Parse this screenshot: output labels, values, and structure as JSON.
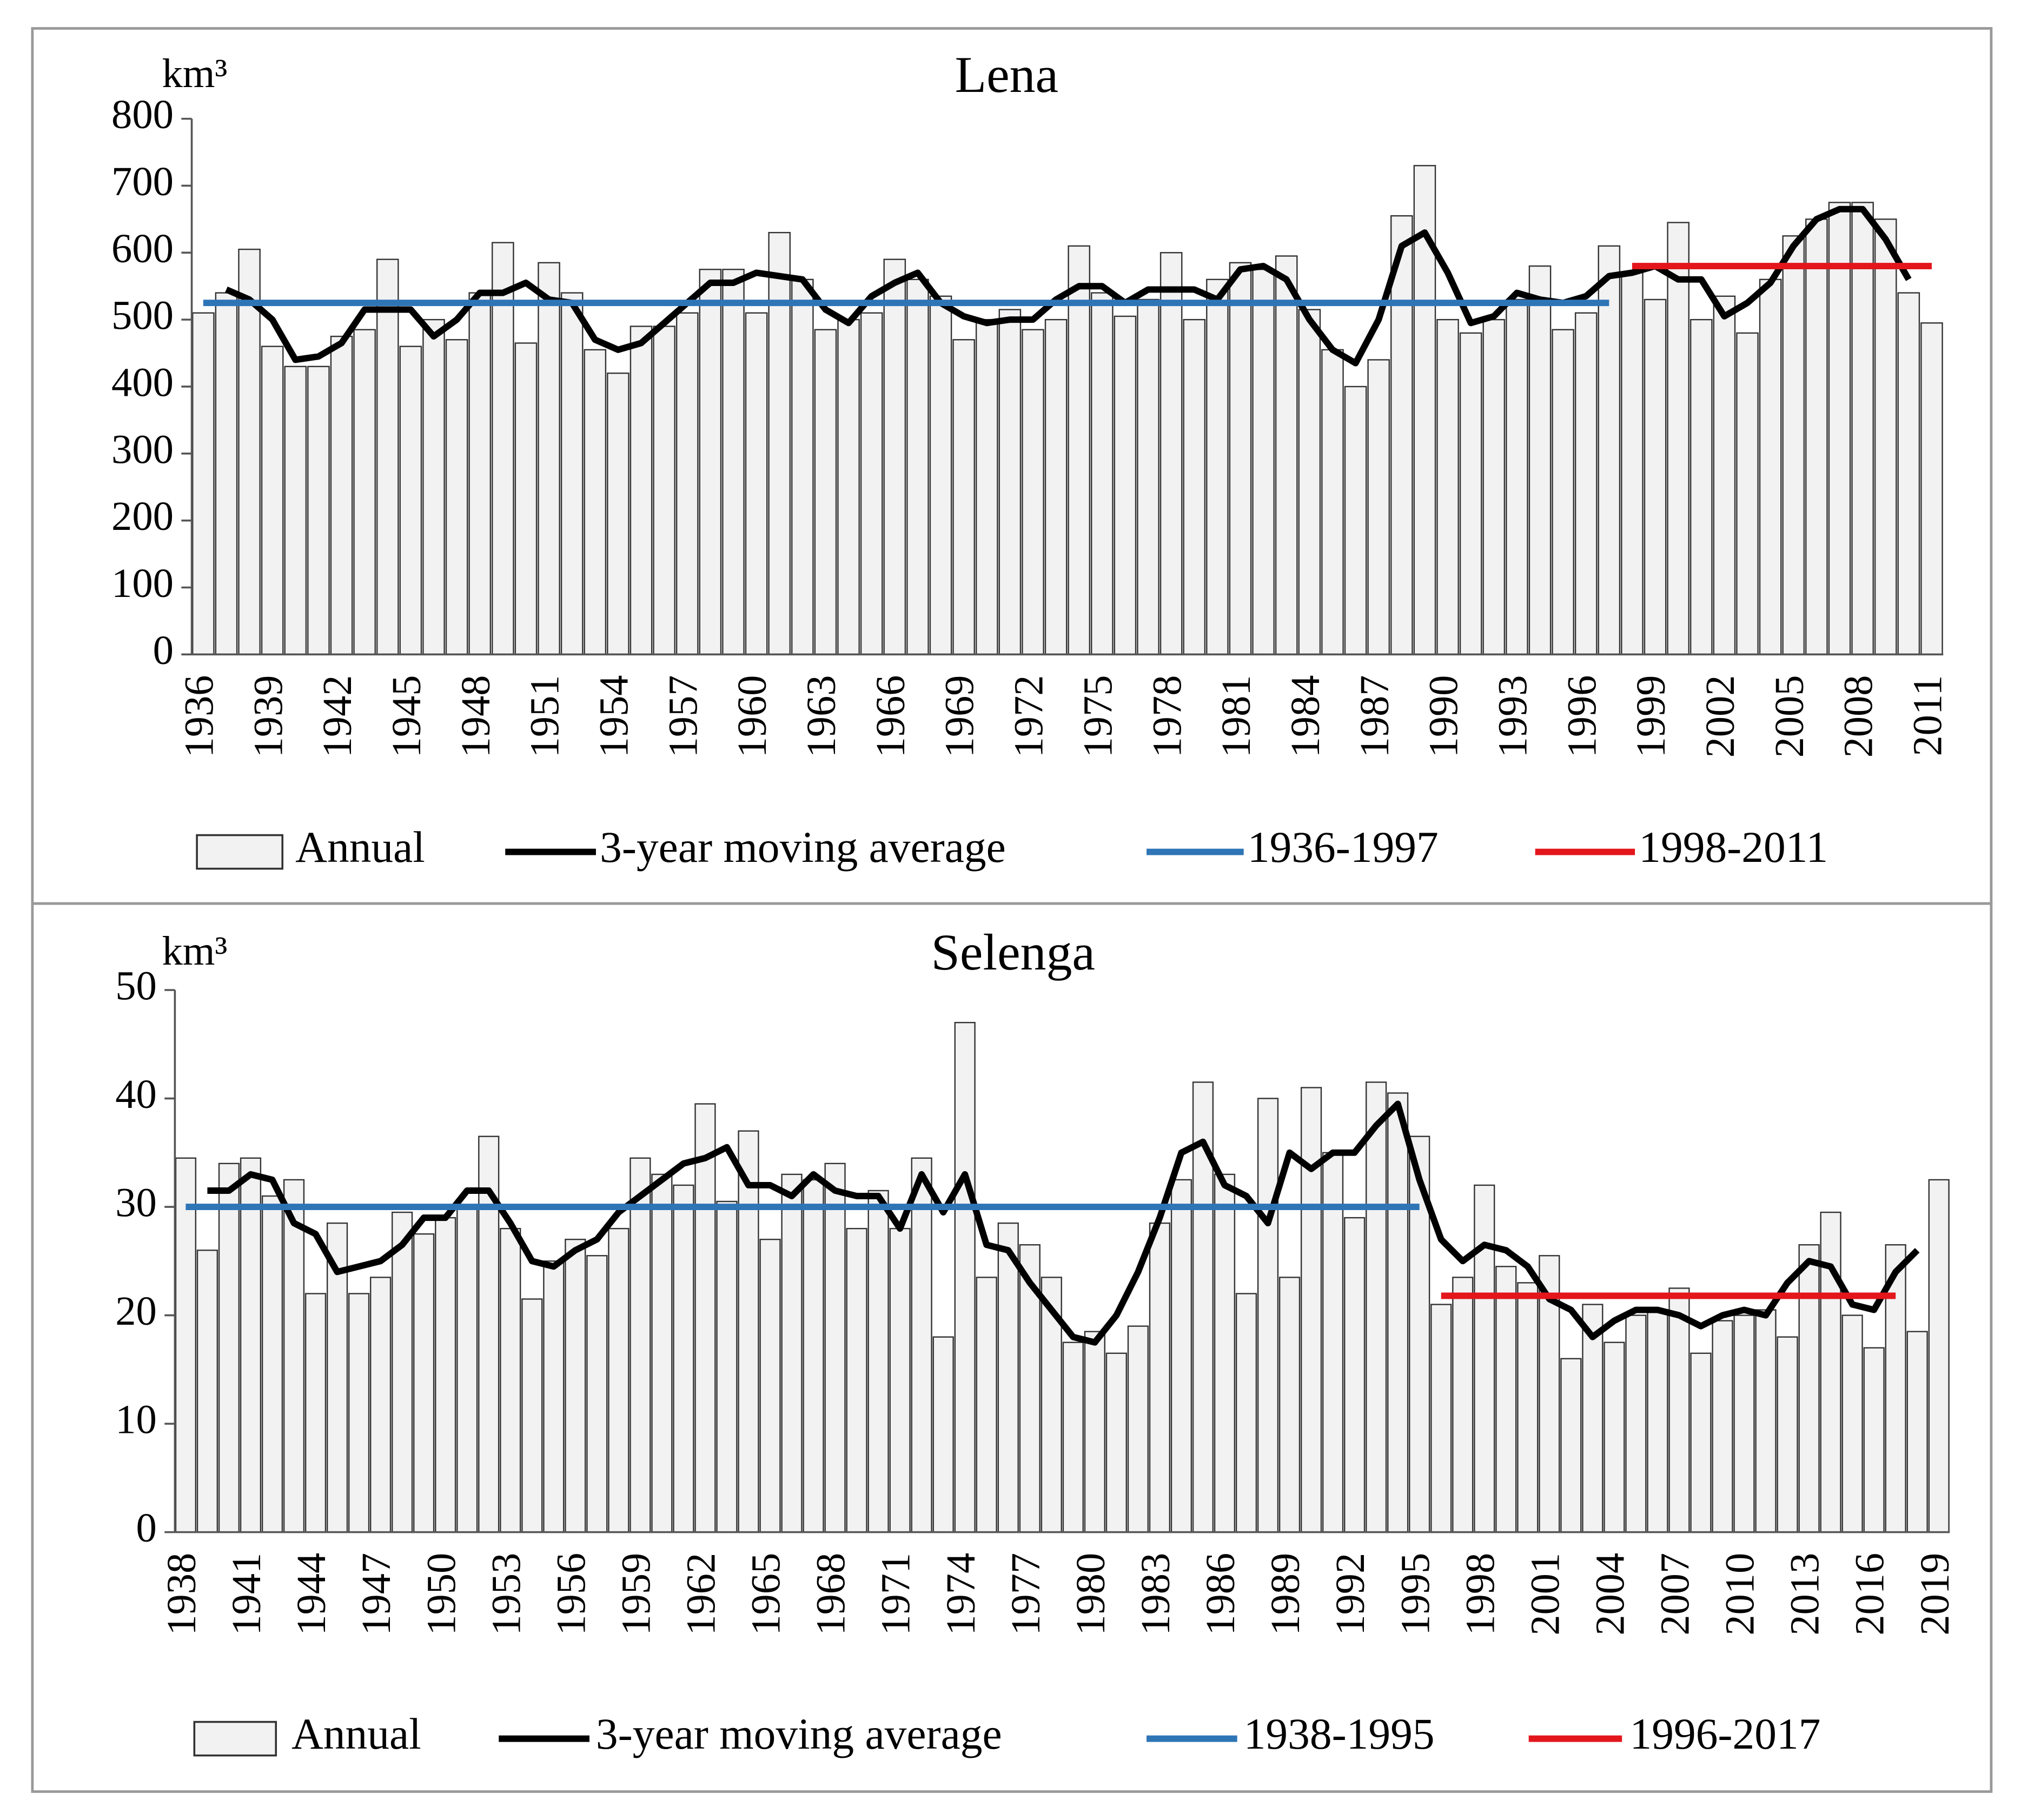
{
  "chart_data": [
    {
      "type": "bar",
      "title": "Lena",
      "y_label": "km³",
      "categories": [
        "1936",
        null,
        null,
        "1939",
        null,
        null,
        "1942",
        null,
        null,
        "1945",
        null,
        null,
        "1948",
        null,
        null,
        "1951",
        null,
        null,
        "1954",
        null,
        null,
        "1957",
        null,
        null,
        "1960",
        null,
        null,
        "1963",
        null,
        null,
        "1966",
        null,
        null,
        "1969",
        null,
        null,
        "1972",
        null,
        null,
        "1975",
        null,
        null,
        "1978",
        null,
        null,
        "1981",
        null,
        null,
        "1984",
        null,
        null,
        "1987",
        null,
        null,
        "1990",
        null,
        null,
        "1993",
        null,
        null,
        "1996",
        null,
        null,
        "1999",
        null,
        null,
        "2002",
        null,
        null,
        "2005",
        null,
        null,
        "2008",
        null,
        null,
        "2011"
      ],
      "ylim": [
        0,
        800
      ],
      "yticks": [
        0,
        100,
        200,
        300,
        400,
        500,
        600,
        700,
        800
      ],
      "series": [
        {
          "name": "Annual",
          "type": "bar",
          "color": "#f2f2f2",
          "values": [
            510,
            540,
            605,
            460,
            430,
            430,
            475,
            485,
            590,
            460,
            500,
            470,
            540,
            615,
            465,
            585,
            540,
            455,
            420,
            490,
            490,
            510,
            575,
            575,
            510,
            630,
            560,
            485,
            500,
            510,
            590,
            560,
            535,
            470,
            500,
            515,
            485,
            500,
            610,
            540,
            505,
            530,
            600,
            500,
            560,
            585,
            575,
            595,
            515,
            455,
            400,
            440,
            655,
            730,
            500,
            480,
            500,
            530,
            580,
            485,
            510,
            610,
            570,
            530,
            645,
            500,
            535,
            480,
            560,
            625,
            650,
            675,
            675,
            650,
            540,
            495
          ]
        },
        {
          "name": "3-year moving average",
          "type": "line",
          "color": "#000000",
          "values": [
            null,
            545,
            530,
            500,
            440,
            445,
            465,
            515,
            515,
            515,
            475,
            500,
            540,
            540,
            555,
            530,
            525,
            470,
            455,
            465,
            495,
            525,
            555,
            555,
            570,
            565,
            560,
            515,
            495,
            535,
            555,
            570,
            525,
            505,
            495,
            500,
            500,
            530,
            550,
            550,
            525,
            545,
            545,
            545,
            530,
            575,
            580,
            560,
            500,
            455,
            435,
            500,
            610,
            630,
            570,
            495,
            505,
            540,
            530,
            525,
            535,
            565,
            570,
            580,
            560,
            560,
            505,
            525,
            555,
            610,
            650,
            665,
            665,
            620,
            560,
            null
          ]
        },
        {
          "name": "1936-1997",
          "type": "line",
          "color": "#2e75b6",
          "values": [
            525,
            525,
            525,
            525,
            525,
            525,
            525,
            525,
            525,
            525,
            525,
            525,
            525,
            525,
            525,
            525,
            525,
            525,
            525,
            525,
            525,
            525,
            525,
            525,
            525,
            525,
            525,
            525,
            525,
            525,
            525,
            525,
            525,
            525,
            525,
            525,
            525,
            525,
            525,
            525,
            525,
            525,
            525,
            525,
            525,
            525,
            525,
            525,
            525,
            525,
            525,
            525,
            525,
            525,
            525,
            525,
            525,
            525,
            525,
            525,
            525,
            525,
            null,
            null,
            null,
            null,
            null,
            null,
            null,
            null,
            null,
            null,
            null,
            null,
            null,
            null
          ]
        },
        {
          "name": "1998-2011",
          "type": "line",
          "color": "#e3161c",
          "values": [
            null,
            null,
            null,
            null,
            null,
            null,
            null,
            null,
            null,
            null,
            null,
            null,
            null,
            null,
            null,
            null,
            null,
            null,
            null,
            null,
            null,
            null,
            null,
            null,
            null,
            null,
            null,
            null,
            null,
            null,
            null,
            null,
            null,
            null,
            null,
            null,
            null,
            null,
            null,
            null,
            null,
            null,
            null,
            null,
            null,
            null,
            null,
            null,
            null,
            null,
            null,
            null,
            null,
            null,
            null,
            null,
            null,
            null,
            null,
            null,
            null,
            null,
            580,
            580,
            580,
            580,
            580,
            580,
            580,
            580,
            580,
            580,
            580,
            580,
            580,
            580
          ]
        }
      ]
    },
    {
      "type": "bar",
      "title": "Selenga",
      "y_label": "km³",
      "categories": [
        "1938",
        null,
        null,
        "1941",
        null,
        null,
        "1944",
        null,
        null,
        "1947",
        null,
        null,
        "1950",
        null,
        null,
        "1953",
        null,
        null,
        "1956",
        null,
        null,
        "1959",
        null,
        null,
        "1962",
        null,
        null,
        "1965",
        null,
        null,
        "1968",
        null,
        null,
        "1971",
        null,
        null,
        "1974",
        null,
        null,
        "1977",
        null,
        null,
        "1980",
        null,
        null,
        "1983",
        null,
        null,
        "1986",
        null,
        null,
        "1989",
        null,
        null,
        "1992",
        null,
        null,
        "1995",
        null,
        null,
        "1998",
        null,
        null,
        "2001",
        null,
        null,
        "2004",
        null,
        null,
        "2007",
        null,
        null,
        "2010",
        null,
        null,
        "2013",
        null,
        null,
        "2016",
        null,
        null,
        "2019"
      ],
      "ylim": [
        0,
        50
      ],
      "yticks": [
        0,
        10,
        20,
        30,
        40,
        50
      ],
      "series": [
        {
          "name": "Annual",
          "type": "bar",
          "color": "#f2f2f2",
          "values": [
            34.5,
            26,
            34,
            34.5,
            31,
            32.5,
            22,
            28.5,
            22,
            23.5,
            29.5,
            27.5,
            29,
            30,
            36.5,
            28,
            21.5,
            25,
            27,
            25.5,
            28,
            34.5,
            33,
            32,
            39.5,
            30.5,
            37,
            27,
            33,
            32.5,
            34,
            28,
            31.5,
            28,
            34.5,
            18,
            47,
            23.5,
            28.5,
            26.5,
            23.5,
            17.5,
            18.5,
            16.5,
            19,
            28.5,
            32.5,
            41.5,
            33,
            22,
            40,
            23.5,
            41,
            35,
            29,
            41.5,
            40.5,
            36.5,
            21,
            23.5,
            32,
            24.5,
            23,
            25.5,
            16,
            21,
            17.5,
            20,
            20.5,
            22.5,
            16.5,
            19.5,
            20,
            20.5,
            18,
            26.5,
            29.5,
            20,
            17,
            26.5,
            18.5,
            32.5
          ]
        },
        {
          "name": "3-year moving average",
          "type": "line",
          "color": "#000000",
          "values": [
            null,
            31.5,
            31.5,
            33,
            32.5,
            28.5,
            27.5,
            24,
            24.5,
            25,
            26.5,
            29,
            29,
            31.5,
            31.5,
            28.5,
            25,
            24.5,
            26,
            27,
            29.5,
            31,
            32.5,
            34,
            34.5,
            35.5,
            32,
            32,
            31,
            33,
            31.5,
            31,
            31,
            28,
            33,
            29.5,
            33,
            26.5,
            26,
            23,
            20.5,
            18,
            17.5,
            20,
            24,
            29,
            35,
            36,
            32,
            31,
            28.5,
            35,
            33.5,
            35,
            35,
            37.5,
            39.5,
            32.5,
            27,
            25,
            26.5,
            26,
            24.5,
            21.5,
            20.5,
            18,
            19.5,
            20.5,
            20.5,
            20,
            19,
            20,
            20.5,
            20,
            23,
            25,
            24.5,
            21,
            20.5,
            24,
            26,
            null
          ]
        },
        {
          "name": "1938-1995",
          "type": "line",
          "color": "#2e75b6",
          "values": [
            30,
            30,
            30,
            30,
            30,
            30,
            30,
            30,
            30,
            30,
            30,
            30,
            30,
            30,
            30,
            30,
            30,
            30,
            30,
            30,
            30,
            30,
            30,
            30,
            30,
            30,
            30,
            30,
            30,
            30,
            30,
            30,
            30,
            30,
            30,
            30,
            30,
            30,
            30,
            30,
            30,
            30,
            30,
            30,
            30,
            30,
            30,
            30,
            30,
            30,
            30,
            30,
            30,
            30,
            30,
            30,
            30,
            30,
            null,
            null,
            null,
            null,
            null,
            null,
            null,
            null,
            null,
            null,
            null,
            null,
            null,
            null,
            null,
            null,
            null,
            null,
            null,
            null,
            null,
            null,
            null,
            null
          ]
        },
        {
          "name": "1996-2017",
          "type": "line",
          "color": "#e3161c",
          "values": [
            null,
            null,
            null,
            null,
            null,
            null,
            null,
            null,
            null,
            null,
            null,
            null,
            null,
            null,
            null,
            null,
            null,
            null,
            null,
            null,
            null,
            null,
            null,
            null,
            null,
            null,
            null,
            null,
            null,
            null,
            null,
            null,
            null,
            null,
            null,
            null,
            null,
            null,
            null,
            null,
            null,
            null,
            null,
            null,
            null,
            null,
            null,
            null,
            null,
            null,
            null,
            null,
            null,
            null,
            null,
            null,
            null,
            null,
            21.8,
            21.8,
            21.8,
            21.8,
            21.8,
            21.8,
            21.8,
            21.8,
            21.8,
            21.8,
            21.8,
            21.8,
            21.8,
            21.8,
            21.8,
            21.8,
            21.8,
            21.8,
            21.8,
            21.8,
            21.8,
            21.8,
            null,
            null
          ]
        }
      ]
    }
  ]
}
